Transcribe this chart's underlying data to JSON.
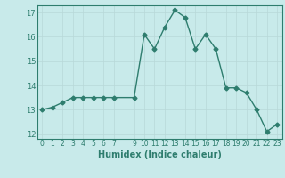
{
  "x": [
    0,
    1,
    2,
    3,
    4,
    5,
    6,
    7,
    9,
    10,
    11,
    12,
    13,
    14,
    15,
    16,
    17,
    18,
    19,
    20,
    21,
    22,
    23
  ],
  "y": [
    13.0,
    13.1,
    13.3,
    13.5,
    13.5,
    13.5,
    13.5,
    13.5,
    13.5,
    16.1,
    15.5,
    16.4,
    17.1,
    16.8,
    15.5,
    16.1,
    15.5,
    13.9,
    13.9,
    13.7,
    13.0,
    12.1,
    12.4
  ],
  "xlabel": "Humidex (Indice chaleur)",
  "ylabel": "",
  "xlim": [
    -0.5,
    23.5
  ],
  "ylim": [
    11.8,
    17.3
  ],
  "yticks": [
    12,
    13,
    14,
    15,
    16,
    17
  ],
  "xticks": [
    0,
    1,
    2,
    3,
    4,
    5,
    6,
    7,
    9,
    10,
    11,
    12,
    13,
    14,
    15,
    16,
    17,
    18,
    19,
    20,
    21,
    22,
    23
  ],
  "line_color": "#2e7d6e",
  "bg_color": "#c8eaea",
  "grid_color": "#b8d8d8",
  "tick_color": "#2e7d6e",
  "label_color": "#2e7d6e",
  "marker": "D",
  "marker_size": 2.5,
  "line_width": 1.0
}
